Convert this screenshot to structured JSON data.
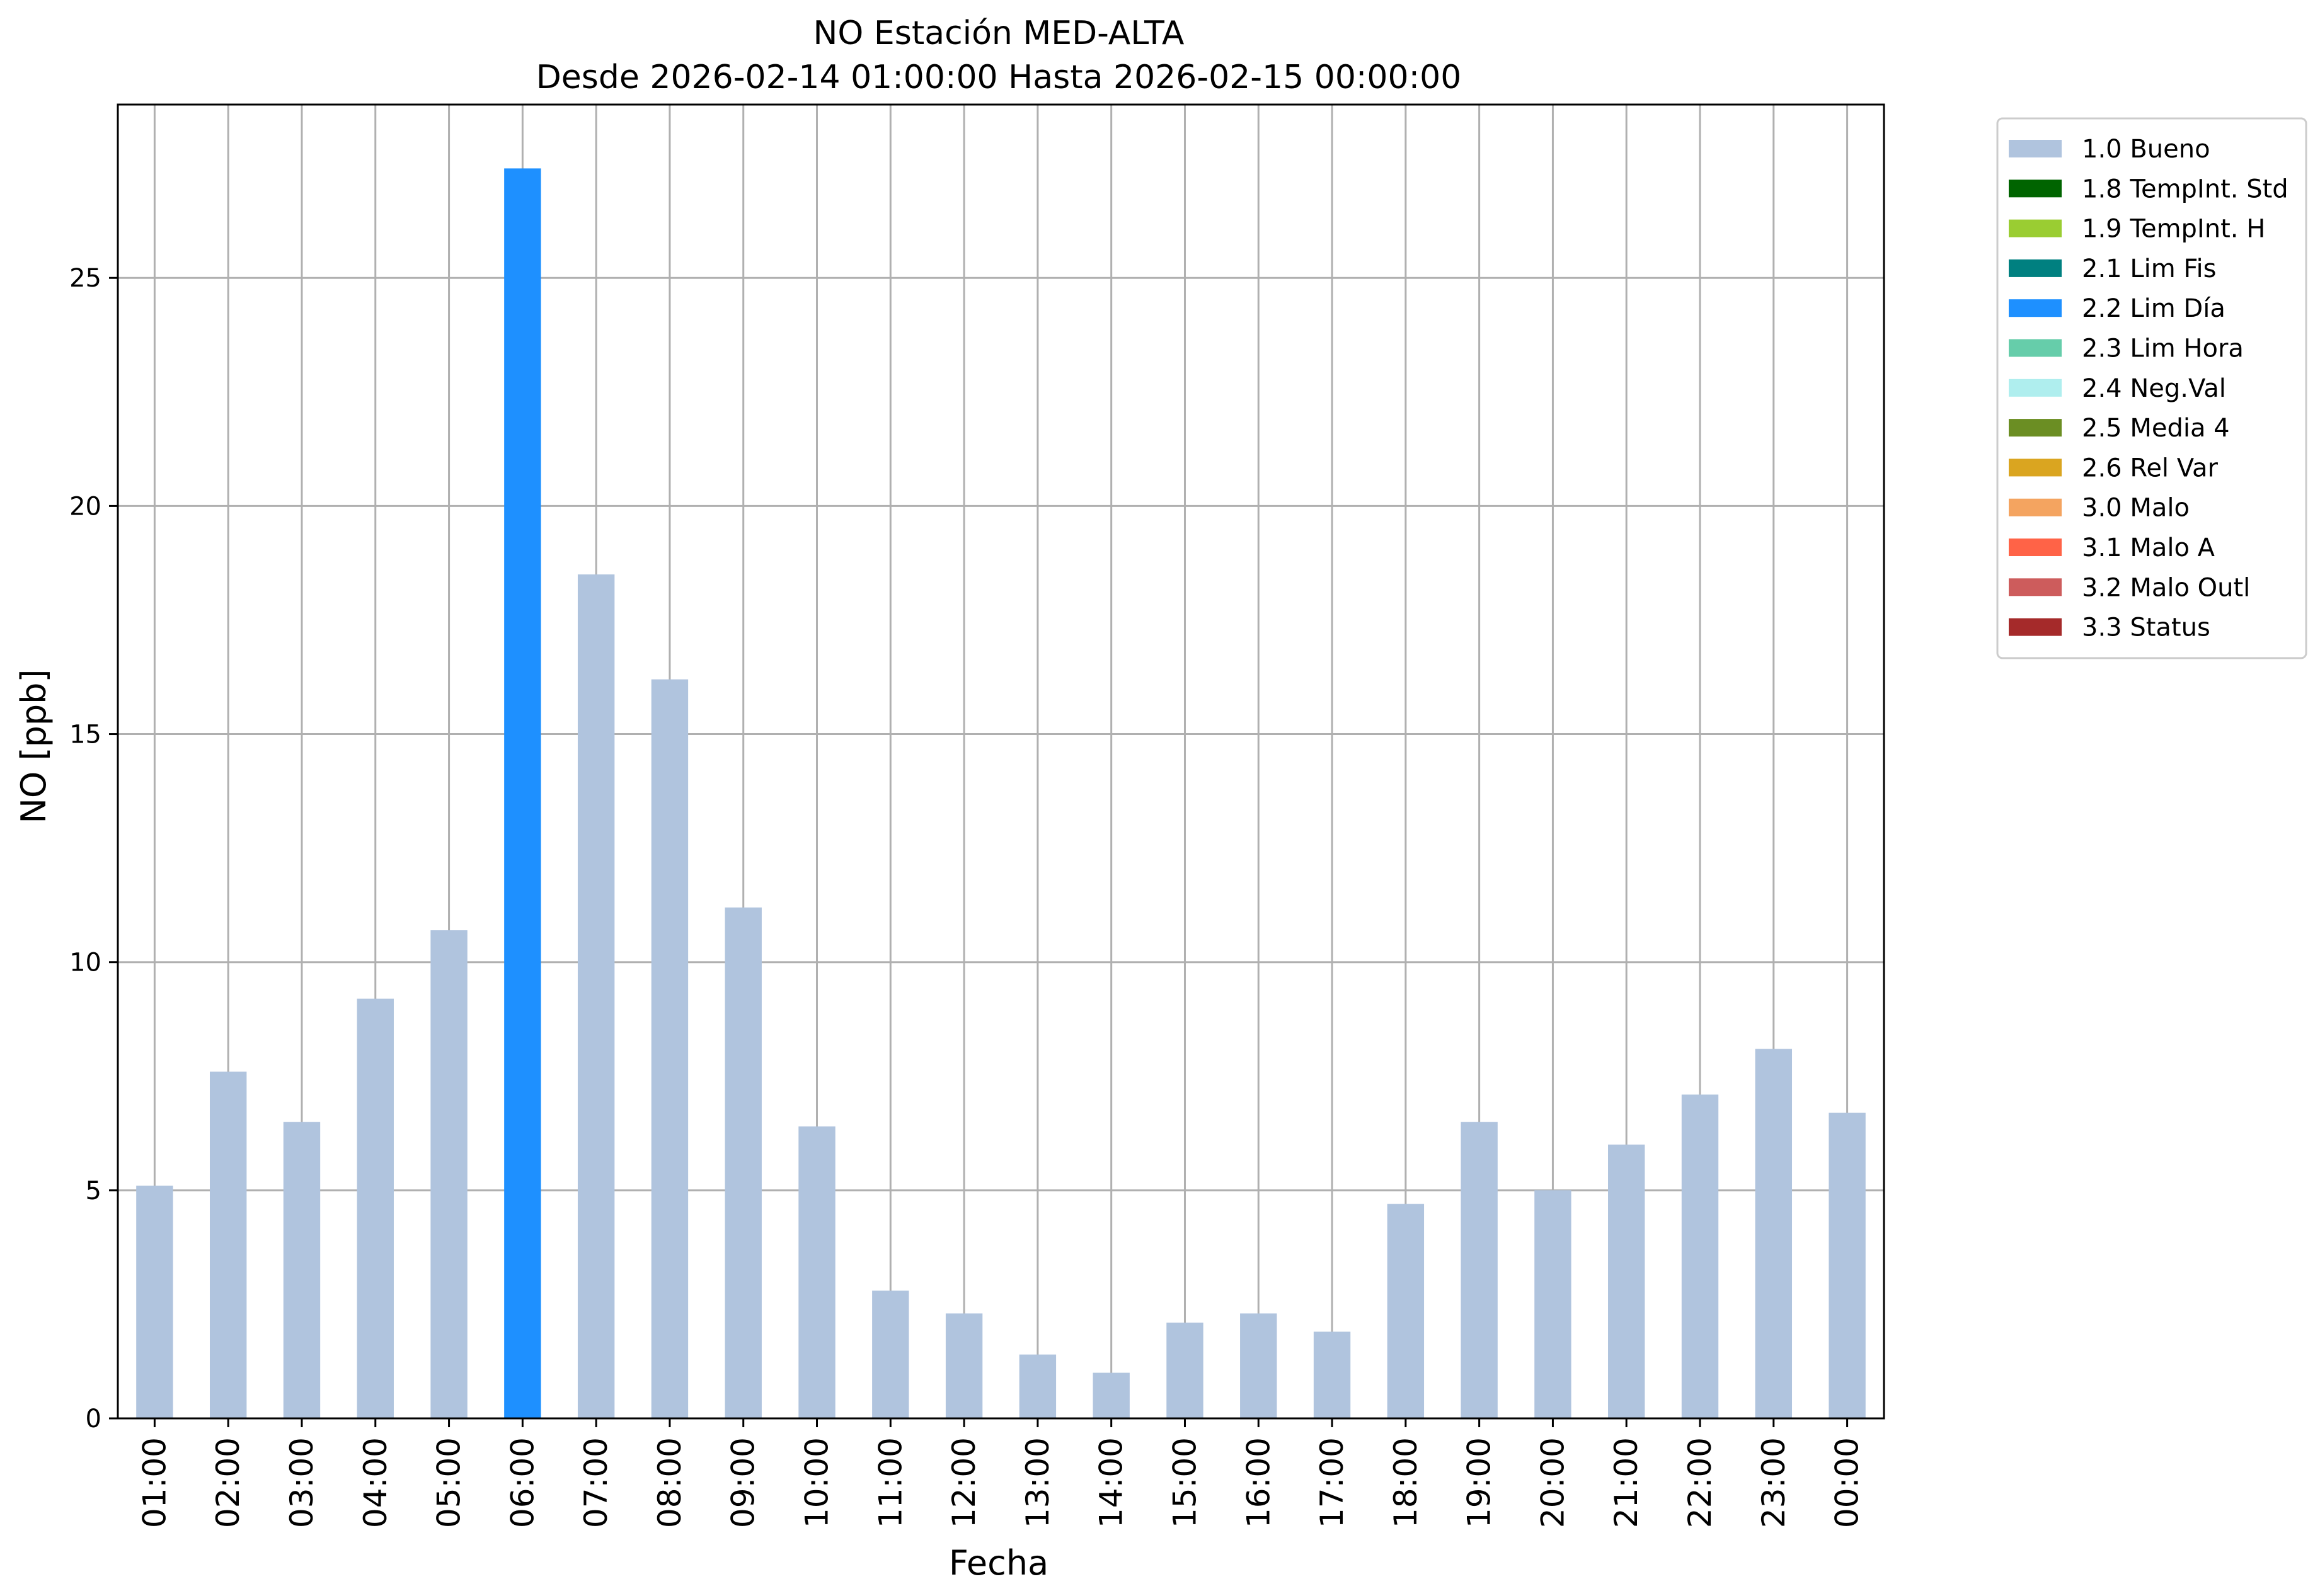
{
  "chart_data": {
    "type": "bar",
    "title": "NO Estación MED-ALTA",
    "subtitle": "Desde 2026-02-14 01:00:00 Hasta 2026-02-15 00:00:00",
    "xlabel": "Fecha",
    "ylabel": "NO [ppb]",
    "ylim": [
      0,
      28.8
    ],
    "yticks": [
      0,
      5,
      10,
      15,
      20,
      25
    ],
    "grid": true,
    "legend_placement": "outside-top-right",
    "categories": [
      "01:00",
      "02:00",
      "03:00",
      "04:00",
      "05:00",
      "06:00",
      "07:00",
      "08:00",
      "09:00",
      "10:00",
      "11:00",
      "12:00",
      "13:00",
      "14:00",
      "15:00",
      "16:00",
      "17:00",
      "18:00",
      "19:00",
      "20:00",
      "21:00",
      "22:00",
      "23:00",
      "00:00"
    ],
    "values": [
      5.1,
      7.6,
      6.5,
      9.2,
      10.7,
      27.4,
      18.5,
      16.2,
      11.2,
      6.4,
      2.8,
      2.3,
      1.4,
      1.0,
      2.1,
      2.3,
      1.9,
      4.7,
      6.5,
      5.0,
      6.0,
      7.1,
      8.1,
      6.7
    ],
    "flags": [
      "1.0 Bueno",
      "1.0 Bueno",
      "1.0 Bueno",
      "1.0 Bueno",
      "1.0 Bueno",
      "2.2 Lim Día",
      "1.0 Bueno",
      "1.0 Bueno",
      "1.0 Bueno",
      "1.0 Bueno",
      "1.0 Bueno",
      "1.0 Bueno",
      "1.0 Bueno",
      "1.0 Bueno",
      "1.0 Bueno",
      "1.0 Bueno",
      "1.0 Bueno",
      "1.0 Bueno",
      "1.0 Bueno",
      "1.0 Bueno",
      "1.0 Bueno",
      "1.0 Bueno",
      "1.0 Bueno",
      "1.0 Bueno"
    ],
    "legend": [
      {
        "label": "1.0 Bueno",
        "color": "#b0c4de"
      },
      {
        "label": "1.8 TempInt. Std",
        "color": "#006400"
      },
      {
        "label": "1.9 TempInt. H",
        "color": "#9acd32"
      },
      {
        "label": "2.1 Lim Fis",
        "color": "#008080"
      },
      {
        "label": "2.2 Lim Día",
        "color": "#1e90ff"
      },
      {
        "label": "2.3 Lim Hora",
        "color": "#66cdaa"
      },
      {
        "label": "2.4 Neg.Val",
        "color": "#afeeee"
      },
      {
        "label": "2.5 Media 4",
        "color": "#6b8e23"
      },
      {
        "label": "2.6 Rel Var",
        "color": "#daa520"
      },
      {
        "label": "3.0 Malo",
        "color": "#f4a460"
      },
      {
        "label": "3.1 Malo A",
        "color": "#ff6347"
      },
      {
        "label": "3.2 Malo Outl",
        "color": "#cd5c5c"
      },
      {
        "label": "3.3 Status",
        "color": "#a52a2a"
      }
    ]
  }
}
